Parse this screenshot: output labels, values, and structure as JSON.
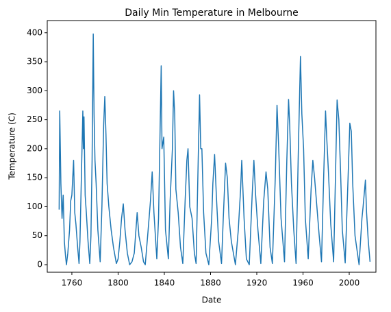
{
  "chart_data": {
    "type": "line",
    "title": "Daily Min Temperature in Melbourne",
    "xlabel": "Date",
    "ylabel": "Temperature (C)",
    "color": "#1f77b4",
    "x": [
      1749,
      1749.5,
      1750.5,
      1751.5,
      1752.5,
      1753.5,
      1754.5,
      1755.3,
      1756.5,
      1758,
      1759,
      1760,
      1761.5,
      1762.5,
      1763.5,
      1765,
      1766.2,
      1767,
      1768,
      1769.5,
      1770,
      1770.5,
      1771.5,
      1772.5,
      1774,
      1775.5,
      1776.5,
      1777.5,
      1778.5,
      1779.2,
      1780,
      1781,
      1782.5,
      1784.5,
      1786,
      1787.5,
      1788.5,
      1789.5,
      1790.5,
      1792,
      1794,
      1796,
      1798.5,
      1800,
      1801.5,
      1803,
      1804.5,
      1806,
      1808,
      1810,
      1812,
      1814,
      1816.5,
      1818,
      1820,
      1822,
      1823.5,
      1826,
      1828,
      1829.5,
      1831,
      1833.5,
      1835,
      1836.5,
      1837.3,
      1838,
      1839.5,
      1841,
      1843.5,
      1845,
      1847,
      1848,
      1849,
      1850,
      1852,
      1854,
      1856,
      1858,
      1859.5,
      1860.5,
      1862,
      1864,
      1866,
      1867.5,
      1869,
      1870.5,
      1871.5,
      1872.5,
      1874,
      1876,
      1878.5,
      1881,
      1882,
      1883.5,
      1885,
      1887,
      1889.5,
      1891,
      1893,
      1894.5,
      1896,
      1898,
      1901.5,
      1904,
      1906,
      1907,
      1909,
      1911,
      1913.5,
      1916,
      1917.5,
      1919,
      1921,
      1923.5,
      1926,
      1928,
      1929.5,
      1931.5,
      1933.5,
      1936,
      1937.5,
      1939,
      1941,
      1944,
      1946,
      1947.5,
      1948.5,
      1950,
      1952,
      1954,
      1956,
      1957.8,
      1959,
      1960.5,
      1962,
      1964.5,
      1967,
      1968.5,
      1970,
      1972,
      1974,
      1976,
      1978,
      1979.5,
      1980.5,
      1982,
      1984,
      1986.5,
      1988.5,
      1989.5,
      1991,
      1992.5,
      1994,
      1996.5,
      1999,
      2000.5,
      2001.8,
      2003,
      2005,
      2008.5,
      2011,
      2012,
      2014,
      2015,
      2016.5,
      2018
    ],
    "values": [
      95,
      265,
      140,
      80,
      120,
      40,
      15,
      0,
      20,
      60,
      110,
      120,
      180,
      90,
      70,
      30,
      2,
      40,
      130,
      265,
      200,
      255,
      120,
      90,
      40,
      2,
      50,
      180,
      398,
      260,
      180,
      140,
      60,
      5,
      100,
      240,
      290,
      225,
      140,
      100,
      60,
      30,
      2,
      10,
      40,
      80,
      105,
      60,
      20,
      0,
      5,
      20,
      90,
      50,
      30,
      5,
      0,
      60,
      110,
      160,
      90,
      10,
      80,
      250,
      343,
      200,
      220,
      60,
      10,
      110,
      200,
      300,
      260,
      130,
      90,
      30,
      2,
      110,
      180,
      200,
      100,
      80,
      20,
      2,
      150,
      293,
      200,
      200,
      90,
      20,
      0,
      80,
      140,
      190,
      120,
      40,
      2,
      80,
      175,
      150,
      80,
      40,
      0,
      60,
      130,
      180,
      80,
      10,
      0,
      120,
      180,
      120,
      60,
      2,
      110,
      160,
      130,
      30,
      2,
      150,
      275,
      200,
      80,
      5,
      180,
      285,
      240,
      140,
      60,
      2,
      200,
      359,
      260,
      200,
      80,
      10,
      130,
      180,
      150,
      100,
      50,
      5,
      160,
      265,
      220,
      160,
      70,
      5,
      190,
      284,
      250,
      160,
      60,
      3,
      150,
      244,
      230,
      140,
      50,
      0,
      80,
      100,
      146,
      90,
      40,
      5
    ],
    "xlim": [
      1738.7,
      2023.1
    ],
    "ylim": [
      -13,
      421
    ],
    "xticks": [
      1760,
      1800,
      1840,
      1880,
      1920,
      1960,
      2000
    ],
    "yticks": [
      0,
      50,
      100,
      150,
      200,
      250,
      300,
      350,
      400
    ]
  }
}
